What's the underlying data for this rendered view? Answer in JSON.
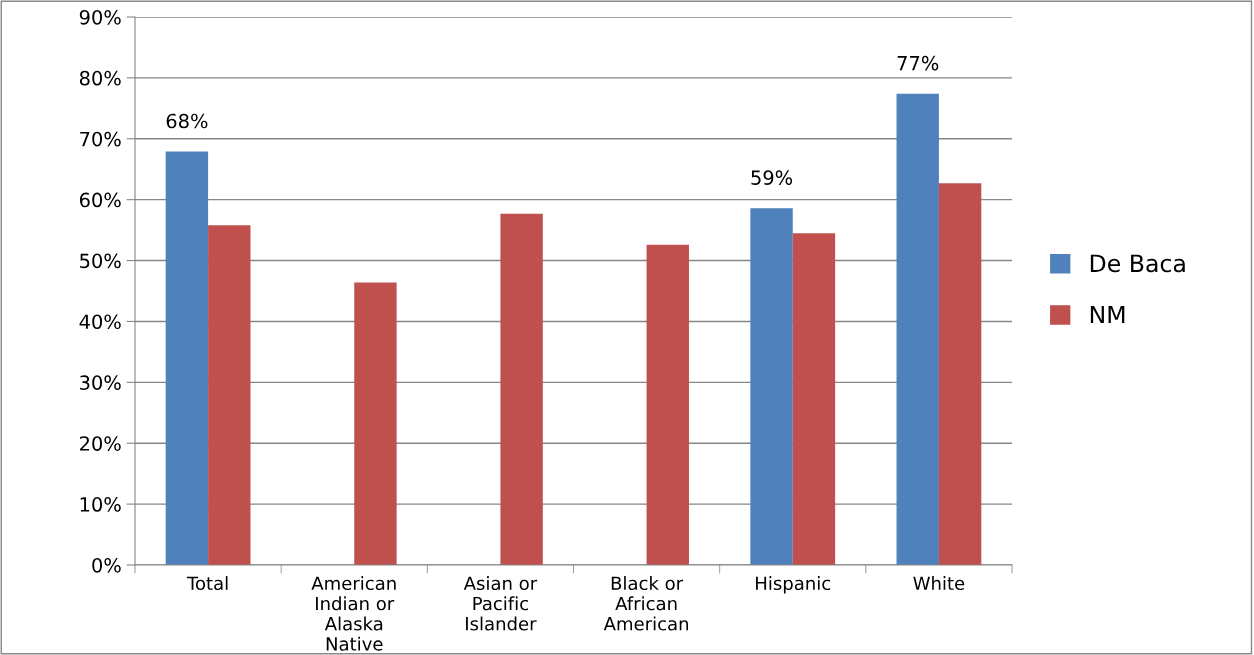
{
  "chart_data": {
    "type": "bar",
    "categories": [
      "Total",
      "American Indian or Alaska Native",
      "Asian or Pacific Islander",
      "Black or African American",
      "Hispanic",
      "White"
    ],
    "series": [
      {
        "name": "De Baca",
        "color": "#4f81bd",
        "values": [
          67.9,
          null,
          null,
          null,
          58.6,
          77.4
        ],
        "value_labels": [
          "68%",
          null,
          null,
          null,
          "59%",
          "77%"
        ]
      },
      {
        "name": "NM",
        "color": "#c0504d",
        "values": [
          55.8,
          46.4,
          57.7,
          52.6,
          54.5,
          62.7
        ]
      }
    ],
    "ylim": [
      0,
      90
    ],
    "yticks": [
      {
        "value": 0,
        "label": "0%"
      },
      {
        "value": 10,
        "label": "10%"
      },
      {
        "value": 20,
        "label": "20%"
      },
      {
        "value": 30,
        "label": "30%"
      },
      {
        "value": 40,
        "label": "40%"
      },
      {
        "value": 50,
        "label": "50%"
      },
      {
        "value": 60,
        "label": "60%"
      },
      {
        "value": 70,
        "label": "70%"
      },
      {
        "value": 80,
        "label": "80%"
      },
      {
        "value": 90,
        "label": "90%"
      }
    ],
    "grid": "y",
    "legend": "right"
  }
}
